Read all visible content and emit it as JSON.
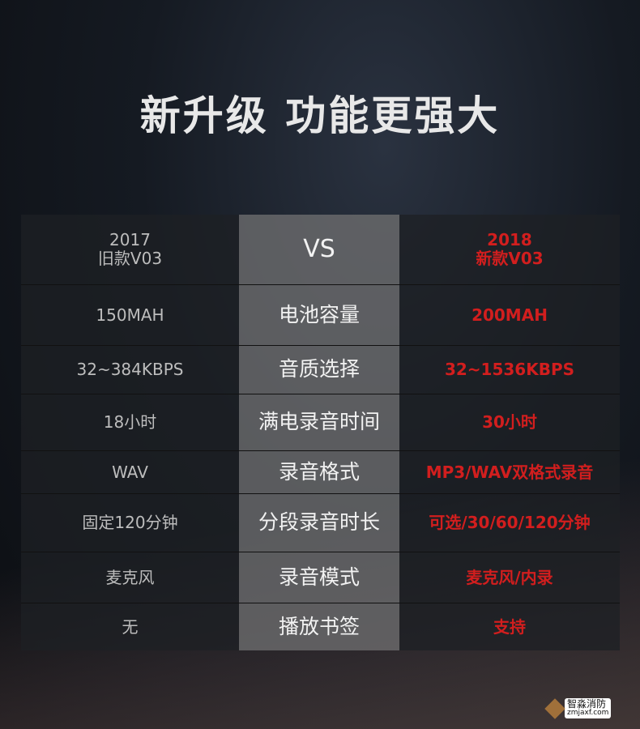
{
  "title": "新升级 功能更强大",
  "header": {
    "old": [
      "2017",
      "旧款V03"
    ],
    "vs": "VS",
    "new": [
      "2018",
      "新款V03"
    ]
  },
  "rows": [
    {
      "old": "150MAH",
      "feature": "电池容量",
      "new": "200MAH"
    },
    {
      "old": "32~384KBPS",
      "feature": "音质选择",
      "new": "32~1536KBPS"
    },
    {
      "old": "18小时",
      "feature": "满电录音时间",
      "new": "30小时"
    },
    {
      "old": "WAV",
      "feature": "录音格式",
      "new": "MP3/WAV双格式录音"
    },
    {
      "old": "固定120分钟",
      "feature": "分段录音时长",
      "new": "可选/30/60/120分钟"
    },
    {
      "old": "麦克风",
      "feature": "录音模式",
      "new": "麦克风/内录"
    },
    {
      "old": "无",
      "feature": "播放书签",
      "new": "支持"
    }
  ],
  "watermark": {
    "name": "智淼消防",
    "url": "zmjaxf.com"
  },
  "colors": {
    "accent": "#d21e1e"
  }
}
